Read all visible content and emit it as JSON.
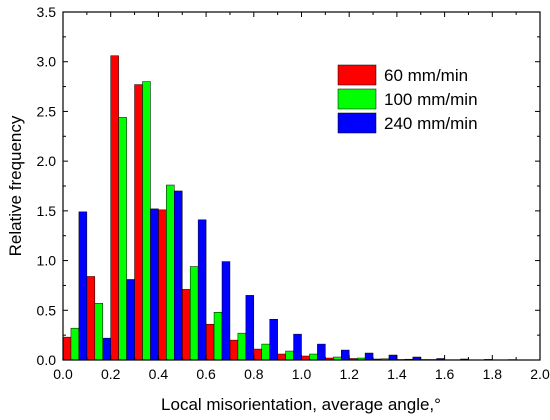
{
  "chart_data": {
    "type": "bar",
    "xlabel": "Local misorientation, average angle,°",
    "ylabel": "Relative frequency",
    "xlim": [
      0,
      2.0
    ],
    "ylim": [
      0,
      3.5
    ],
    "x_ticks": [
      "0.0",
      "0.2",
      "0.4",
      "0.6",
      "0.8",
      "1.0",
      "1.2",
      "1.4",
      "1.6",
      "1.8",
      "2.0"
    ],
    "y_ticks": [
      "0.0",
      "0.5",
      "1.0",
      "1.5",
      "2.0",
      "2.5",
      "3.0",
      "3.5"
    ],
    "bin_centers": [
      0.05,
      0.15,
      0.25,
      0.35,
      0.45,
      0.55,
      0.65,
      0.75,
      0.85,
      0.95,
      1.05,
      1.15,
      1.25,
      1.35,
      1.45,
      1.55,
      1.65,
      1.75,
      1.85,
      1.95
    ],
    "series": [
      {
        "name": "60 mm/min",
        "color": "#ff0000",
        "values": [
          0.23,
          0.84,
          3.06,
          2.77,
          1.51,
          0.71,
          0.36,
          0.2,
          0.11,
          0.06,
          0.04,
          0.02,
          0.015,
          0.01,
          0.005,
          0.005,
          0.003,
          0.002,
          0.002,
          0.001
        ]
      },
      {
        "name": "100 mm/min",
        "color": "#00ff00",
        "values": [
          0.32,
          0.57,
          2.44,
          2.8,
          1.76,
          0.94,
          0.48,
          0.27,
          0.16,
          0.09,
          0.06,
          0.03,
          0.02,
          0.012,
          0.008,
          0.005,
          0.003,
          0.002,
          0.002,
          0.001
        ]
      },
      {
        "name": "240 mm/min",
        "color": "#0000ff",
        "values": [
          1.49,
          0.22,
          0.81,
          1.52,
          1.7,
          1.41,
          0.99,
          0.65,
          0.41,
          0.26,
          0.16,
          0.1,
          0.07,
          0.05,
          0.03,
          0.015,
          0.01,
          0.006,
          0.004,
          0.002
        ]
      }
    ],
    "legend_position": "top-right",
    "grid": false
  }
}
